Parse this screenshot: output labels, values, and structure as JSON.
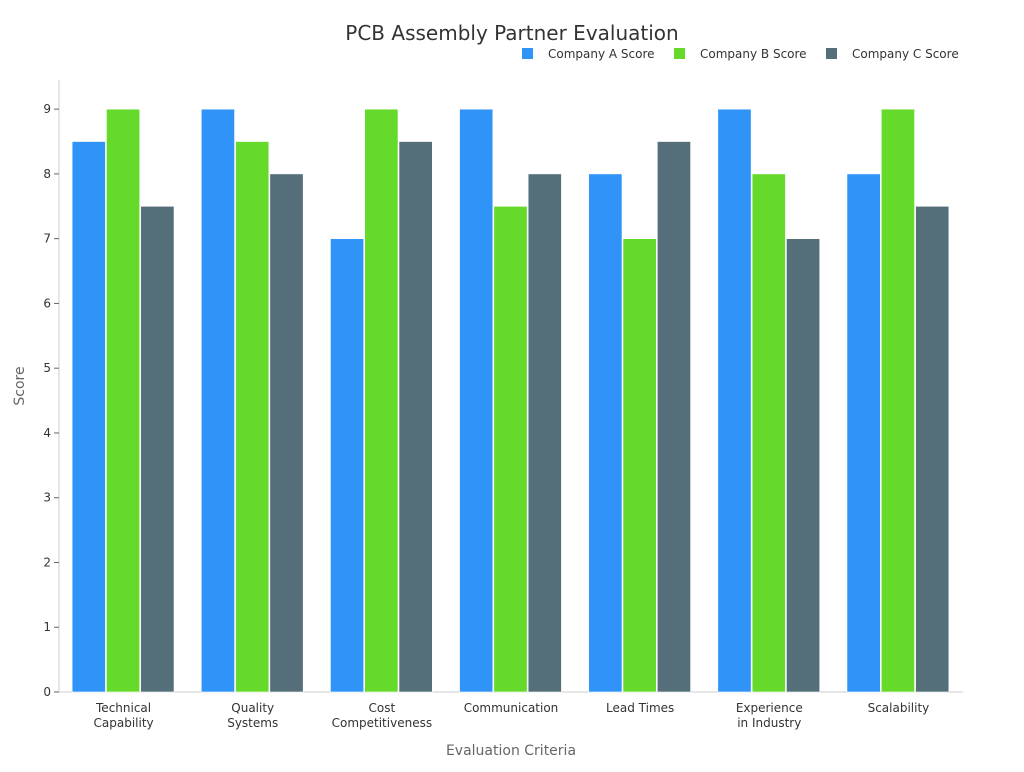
{
  "chart_data": {
    "type": "bar",
    "title": "PCB Assembly Partner Evaluation",
    "xlabel": "Evaluation Criteria",
    "ylabel": "Score",
    "ylim": [
      0,
      9.45
    ],
    "yticks": [
      0,
      1,
      2,
      3,
      4,
      5,
      6,
      7,
      8,
      9
    ],
    "grid": false,
    "legend_position": "top-right",
    "categories": [
      [
        "Technical",
        "Capability"
      ],
      [
        "Quality",
        "Systems"
      ],
      [
        "Cost",
        "Competitiveness"
      ],
      [
        "Communication"
      ],
      [
        "Lead Times"
      ],
      [
        "Experience",
        "in Industry"
      ],
      [
        "Scalability"
      ]
    ],
    "series": [
      {
        "name": "Company A Score",
        "color": "#2f93f7",
        "values": [
          8.5,
          9,
          7,
          9,
          8,
          9,
          8
        ]
      },
      {
        "name": "Company B Score",
        "color": "#66da2a",
        "values": [
          9,
          8.5,
          9,
          7.5,
          7,
          8,
          9
        ]
      },
      {
        "name": "Company C Score",
        "color": "#546e7a",
        "values": [
          7.5,
          8,
          8.5,
          8,
          8.5,
          7,
          7.5
        ]
      }
    ]
  }
}
